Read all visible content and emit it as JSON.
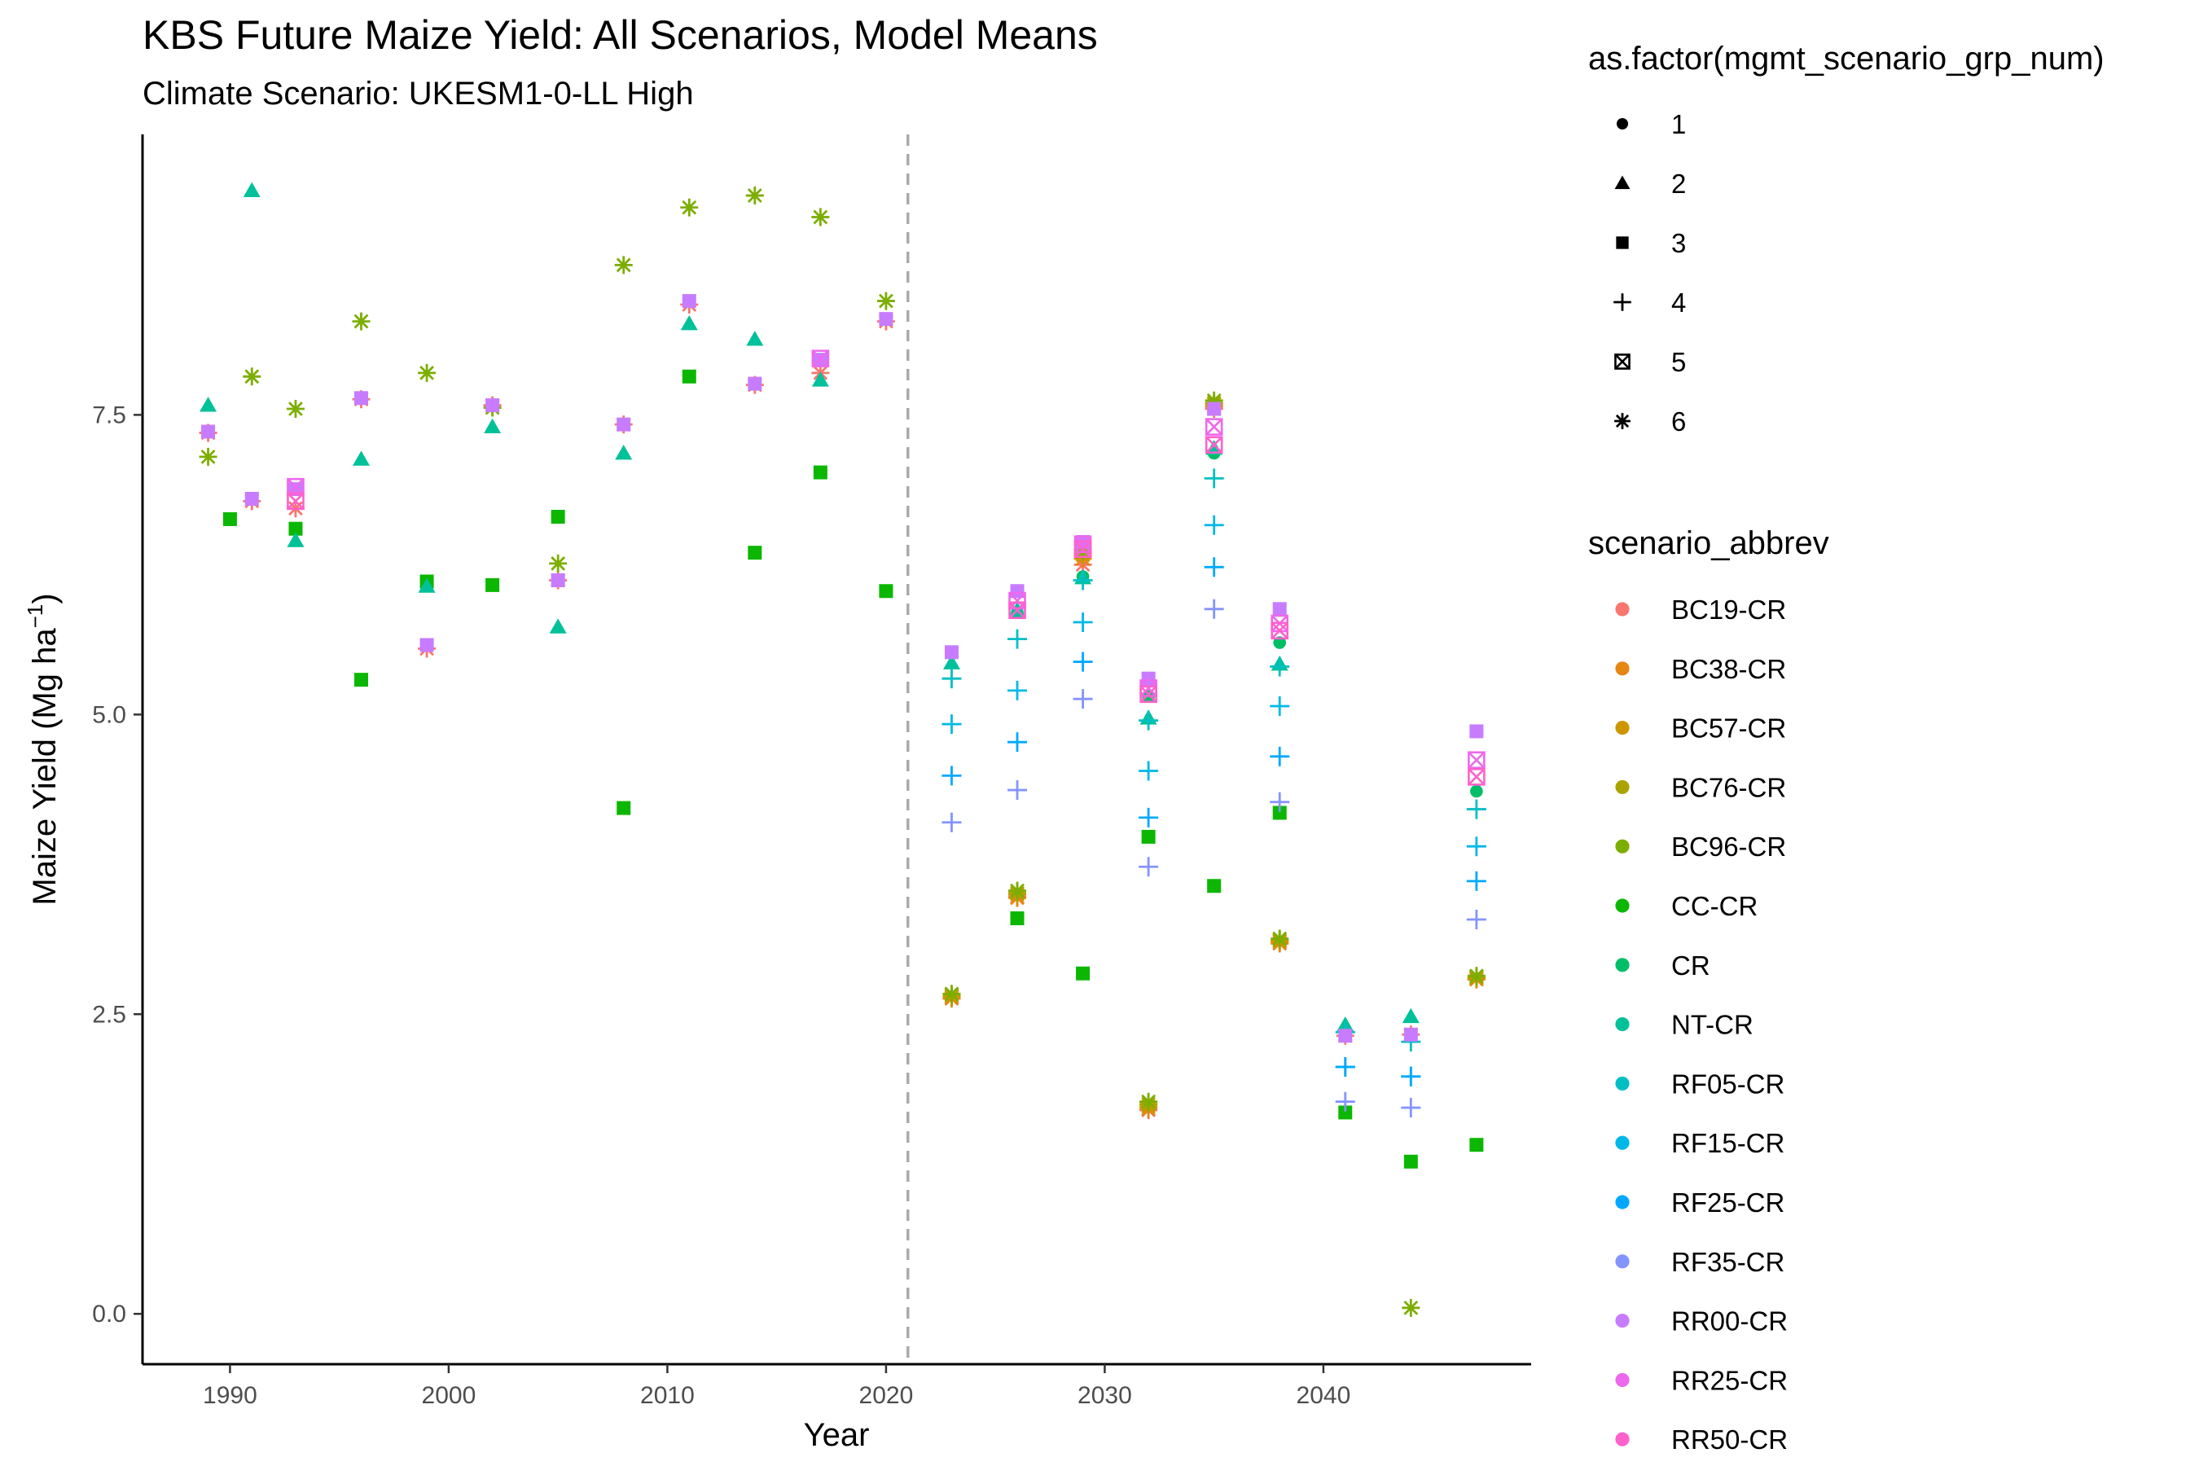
{
  "chart_data": {
    "type": "scatter",
    "title": "KBS Future Maize Yield: All Scenarios, Model Means",
    "subtitle": "Climate Scenario: UKESM1-0-LL High",
    "xlabel": "Year",
    "ylabel_main": "Maize Yield (Mg ha",
    "ylabel_sup": "−1",
    "ylabel_close": ")",
    "xlim": [
      1986,
      2049.5
    ],
    "ylim": [
      -0.42,
      9.84
    ],
    "x_ticks": [
      1990,
      2000,
      2010,
      2020,
      2030,
      2040
    ],
    "x_tick_labels": [
      "1990",
      "2000",
      "2010",
      "2020",
      "2030",
      "2040"
    ],
    "y_ticks": [
      0.0,
      2.5,
      5.0,
      7.5
    ],
    "y_tick_labels": [
      "0.0",
      "2.5",
      "5.0",
      "7.5"
    ],
    "grid": false,
    "reference_line": {
      "x": 2021,
      "style": "dashed",
      "color": "#aaaaaa"
    },
    "legend_position": "right",
    "shape_legend": {
      "title": "as.factor(mgmt_scenario_grp_num)",
      "entries": [
        {
          "label": "1",
          "shape": "circle"
        },
        {
          "label": "2",
          "shape": "triangle"
        },
        {
          "label": "3",
          "shape": "square"
        },
        {
          "label": "4",
          "shape": "plus"
        },
        {
          "label": "5",
          "shape": "boxx"
        },
        {
          "label": "6",
          "shape": "asterisk"
        }
      ]
    },
    "color_legend": {
      "title": "scenario_abbrev",
      "entries": [
        {
          "label": "BC19-CR",
          "color": "#F8766D"
        },
        {
          "label": "BC38-CR",
          "color": "#E68613"
        },
        {
          "label": "BC57-CR",
          "color": "#CD9600"
        },
        {
          "label": "BC76-CR",
          "color": "#ABA300"
        },
        {
          "label": "BC96-CR",
          "color": "#7CAE00"
        },
        {
          "label": "CC-CR",
          "color": "#0CB702"
        },
        {
          "label": "CR",
          "color": "#00BE67"
        },
        {
          "label": "NT-CR",
          "color": "#00C19A"
        },
        {
          "label": "RF05-CR",
          "color": "#00BFC4"
        },
        {
          "label": "RF15-CR",
          "color": "#00B8E7"
        },
        {
          "label": "RF25-CR",
          "color": "#00A9FF"
        },
        {
          "label": "RF35-CR",
          "color": "#8494FF"
        },
        {
          "label": "RR00-CR",
          "color": "#C77CFF"
        },
        {
          "label": "RR25-CR",
          "color": "#ED68ED"
        },
        {
          "label": "RR50-CR",
          "color": "#FF61CC"
        }
      ]
    },
    "series": [
      {
        "name": "BC19-CR",
        "shape": "asterisk",
        "color": "#F8766D",
        "x": [
          1989,
          1991,
          1993,
          1996,
          1999,
          2002,
          2005,
          2008,
          2011,
          2014,
          2017,
          2020,
          2023,
          2026,
          2029,
          2032,
          2035,
          2038,
          2041,
          2044,
          2047
        ],
        "y": [
          7.35,
          6.78,
          6.72,
          7.63,
          5.55,
          7.58,
          6.12,
          7.42,
          8.42,
          7.75,
          7.85,
          8.28,
          2.64,
          3.48,
          6.25,
          1.7,
          7.55,
          3.1,
          2.32,
          2.33,
          2.8
        ]
      },
      {
        "name": "BC38-CR",
        "shape": "asterisk",
        "color": "#E68613",
        "x": [
          2023,
          2026,
          2029,
          2032,
          2035,
          2038,
          2047
        ],
        "y": [
          2.63,
          3.47,
          6.3,
          1.71,
          7.57,
          3.09,
          2.79
        ]
      },
      {
        "name": "BC57-CR",
        "shape": "asterisk",
        "color": "#CD9600",
        "x": [
          2023,
          2026,
          2029,
          2032,
          2035,
          2038,
          2047
        ],
        "y": [
          2.65,
          3.5,
          6.33,
          1.73,
          7.59,
          3.11,
          2.8
        ]
      },
      {
        "name": "BC76-CR",
        "shape": "asterisk",
        "color": "#ABA300",
        "x": [
          2023,
          2026,
          2029,
          2032,
          2035,
          2038,
          2047
        ],
        "y": [
          2.66,
          3.51,
          6.35,
          1.75,
          7.6,
          3.12,
          2.81
        ]
      },
      {
        "name": "BC96-CR",
        "shape": "asterisk",
        "color": "#7CAE00",
        "x": [
          1989,
          1991,
          1993,
          1996,
          1999,
          2002,
          2005,
          2008,
          2011,
          2014,
          2017,
          2020,
          2023,
          2026,
          2029,
          2032,
          2035,
          2038,
          2044,
          2047
        ],
        "y": [
          7.15,
          7.82,
          7.55,
          8.28,
          7.85,
          7.56,
          6.26,
          8.75,
          9.23,
          9.33,
          9.15,
          8.45,
          2.67,
          3.53,
          6.37,
          1.77,
          7.62,
          3.13,
          0.05,
          2.82
        ]
      },
      {
        "name": "CC-CR",
        "shape": "square",
        "color": "#0CB702",
        "x": [
          1990,
          1993,
          1996,
          1999,
          2002,
          2005,
          2008,
          2011,
          2014,
          2017,
          2020,
          2026,
          2029,
          2032,
          2035,
          2038,
          2041,
          2044,
          2047
        ],
        "y": [
          6.63,
          6.55,
          5.29,
          6.11,
          6.08,
          6.65,
          4.22,
          7.82,
          6.35,
          7.02,
          6.03,
          3.3,
          2.84,
          3.98,
          3.57,
          4.18,
          1.68,
          1.27,
          1.41
        ]
      },
      {
        "name": "CR",
        "shape": "circle",
        "color": "#00BE67",
        "x": [
          2026,
          2029,
          2032,
          2035,
          2038,
          2047
        ],
        "y": [
          5.85,
          6.15,
          5.15,
          7.18,
          5.6,
          4.36
        ]
      },
      {
        "name": "NT-CR",
        "shape": "triangle",
        "color": "#00C19A",
        "x": [
          1989,
          1991,
          1993,
          1996,
          1999,
          2002,
          2005,
          2008,
          2011,
          2014,
          2017,
          2023,
          2026,
          2029,
          2032,
          2035,
          2038,
          2041,
          2044
        ],
        "y": [
          7.58,
          9.37,
          6.45,
          7.13,
          6.07,
          7.4,
          5.73,
          7.18,
          8.26,
          8.13,
          7.79,
          5.43,
          5.87,
          6.14,
          4.97,
          7.22,
          5.42,
          2.41,
          2.48
        ]
      },
      {
        "name": "RF05-CR",
        "shape": "plus",
        "color": "#00BFC4",
        "x": [
          2023,
          2026,
          2029,
          2032,
          2035,
          2038,
          2041,
          2044,
          2047
        ],
        "y": [
          5.3,
          5.63,
          6.12,
          4.95,
          6.97,
          5.4,
          2.35,
          2.27,
          4.21
        ]
      },
      {
        "name": "RF15-CR",
        "shape": "plus",
        "color": "#00B8E7",
        "x": [
          2023,
          2026,
          2029,
          2032,
          2035,
          2038,
          2041,
          2044,
          2047
        ],
        "y": [
          4.92,
          5.2,
          5.77,
          4.53,
          6.58,
          5.07,
          2.06,
          1.98,
          3.9
        ]
      },
      {
        "name": "RF25-CR",
        "shape": "plus",
        "color": "#00A9FF",
        "x": [
          2023,
          2026,
          2029,
          2032,
          2035,
          2038,
          2041,
          2044,
          2047
        ],
        "y": [
          4.49,
          4.77,
          5.44,
          4.14,
          6.23,
          4.65,
          2.06,
          1.98,
          3.61
        ]
      },
      {
        "name": "RF35-CR",
        "shape": "plus",
        "color": "#8494FF",
        "x": [
          2023,
          2026,
          2029,
          2032,
          2035,
          2038,
          2041,
          2044,
          2047
        ],
        "y": [
          4.1,
          4.37,
          5.13,
          3.73,
          5.88,
          4.27,
          1.77,
          1.72,
          3.29
        ]
      },
      {
        "name": "RR00-CR",
        "shape": "square",
        "color": "#C77CFF",
        "x": [
          1989,
          1991,
          1993,
          1996,
          1999,
          2002,
          2005,
          2008,
          2011,
          2014,
          2017,
          2020,
          2023,
          2026,
          2029,
          2032,
          2035,
          2038,
          2041,
          2044,
          2047
        ],
        "y": [
          7.36,
          6.8,
          6.88,
          7.64,
          5.58,
          7.58,
          6.12,
          7.42,
          8.45,
          7.76,
          7.96,
          8.3,
          5.52,
          6.03,
          6.44,
          5.3,
          7.55,
          5.88,
          2.32,
          2.33,
          4.86
        ]
      },
      {
        "name": "RR25-CR",
        "shape": "boxx",
        "color": "#ED68ED",
        "x": [
          1993,
          2017,
          2026,
          2029,
          2032,
          2035,
          2038,
          2047
        ],
        "y": [
          6.9,
          7.97,
          5.95,
          6.42,
          5.22,
          7.4,
          5.76,
          4.62
        ]
      },
      {
        "name": "RR50-CR",
        "shape": "boxx",
        "color": "#FF61CC",
        "x": [
          1993,
          2026,
          2029,
          2032,
          2035,
          2038,
          2047
        ],
        "y": [
          6.78,
          5.87,
          6.38,
          5.17,
          7.25,
          5.7,
          4.48
        ]
      }
    ]
  }
}
